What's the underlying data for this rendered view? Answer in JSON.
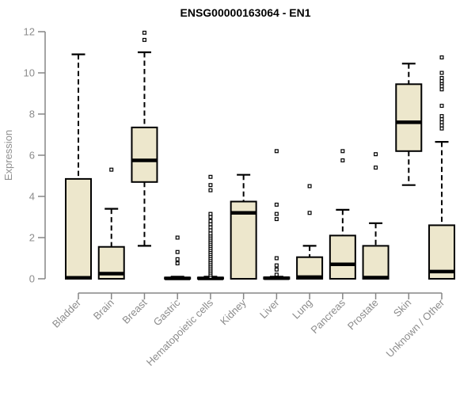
{
  "chart_data": {
    "type": "boxplot",
    "title": "ENSG00000163064 - EN1",
    "ylabel": "Expression",
    "xlabel": "",
    "ylim": [
      0,
      12
    ],
    "yticks": [
      0,
      2,
      4,
      6,
      8,
      10,
      12
    ],
    "grid": false,
    "legend": "none",
    "categories": [
      "Bladder",
      "Brain",
      "Breast",
      "Gastric",
      "Hematopoietic cells",
      "Kidney",
      "Liver",
      "Lung",
      "Pancreas",
      "Prostate",
      "Skin",
      "Unknown / Other"
    ],
    "boxes": [
      {
        "category": "Bladder",
        "whisker_low": 0,
        "q1": 0,
        "median": 0.05,
        "q3": 4.85,
        "whisker_high": 10.9,
        "outliers": []
      },
      {
        "category": "Brain",
        "whisker_low": 0,
        "q1": 0,
        "median": 0.25,
        "q3": 1.55,
        "whisker_high": 3.4,
        "outliers": [
          5.3
        ]
      },
      {
        "category": "Breast",
        "whisker_low": 1.6,
        "q1": 4.7,
        "median": 5.75,
        "q3": 7.35,
        "whisker_high": 11.0,
        "outliers": [
          11.6,
          11.95
        ]
      },
      {
        "category": "Gastric",
        "whisker_low": 0,
        "q1": 0,
        "median": 0.02,
        "q3": 0.06,
        "whisker_high": 0.1,
        "outliers": [
          0.75,
          0.95,
          1.3,
          2.0
        ]
      },
      {
        "category": "Hematopoietic cells",
        "whisker_low": 0,
        "q1": 0,
        "median": 0.02,
        "q3": 0.06,
        "whisker_high": 0.1,
        "outliers": [
          0.1,
          0.2,
          0.3,
          0.4,
          0.5,
          0.6,
          0.7,
          0.8,
          0.9,
          1.0,
          1.1,
          1.2,
          1.3,
          1.4,
          1.5,
          1.6,
          1.7,
          1.8,
          1.9,
          2.0,
          2.1,
          2.2,
          2.35,
          2.5,
          2.65,
          2.8,
          3.0,
          3.15,
          4.3,
          4.55,
          4.95
        ]
      },
      {
        "category": "Kidney",
        "whisker_low": 0,
        "q1": 0,
        "median": 3.2,
        "q3": 3.75,
        "whisker_high": 5.05,
        "outliers": []
      },
      {
        "category": "Liver",
        "whisker_low": 0,
        "q1": 0,
        "median": 0.03,
        "q3": 0.07,
        "whisker_high": 0.1,
        "outliers": [
          0.2,
          0.45,
          0.65,
          1.0,
          2.9,
          3.15,
          3.6,
          6.2
        ]
      },
      {
        "category": "Lung",
        "whisker_low": 0,
        "q1": 0,
        "median": 0.08,
        "q3": 1.05,
        "whisker_high": 1.6,
        "outliers": [
          3.2,
          4.5
        ]
      },
      {
        "category": "Pancreas",
        "whisker_low": 0,
        "q1": 0,
        "median": 0.7,
        "q3": 2.1,
        "whisker_high": 3.35,
        "outliers": [
          5.75,
          6.2
        ]
      },
      {
        "category": "Prostate",
        "whisker_low": 0,
        "q1": 0,
        "median": 0.06,
        "q3": 1.6,
        "whisker_high": 2.7,
        "outliers": [
          5.4,
          6.05
        ]
      },
      {
        "category": "Skin",
        "whisker_low": 4.55,
        "q1": 6.2,
        "median": 7.6,
        "q3": 9.45,
        "whisker_high": 10.45,
        "outliers": []
      },
      {
        "category": "Unknown / Other",
        "whisker_low": 0,
        "q1": 0,
        "median": 0.35,
        "q3": 2.6,
        "whisker_high": 6.65,
        "outliers": [
          7.3,
          7.45,
          7.6,
          7.75,
          7.9,
          8.4,
          9.2,
          9.35,
          9.5,
          9.6,
          9.75,
          10.0,
          10.75
        ]
      }
    ],
    "colors": {
      "background": "#ffffff",
      "box_fill": "#EDE7CC",
      "box_stroke": "#000000",
      "median": "#000000",
      "whisker": "#000000",
      "outlier": "#000000",
      "axis": "#858585",
      "tick_label": "#8c8c8c",
      "title": "#000000"
    }
  }
}
